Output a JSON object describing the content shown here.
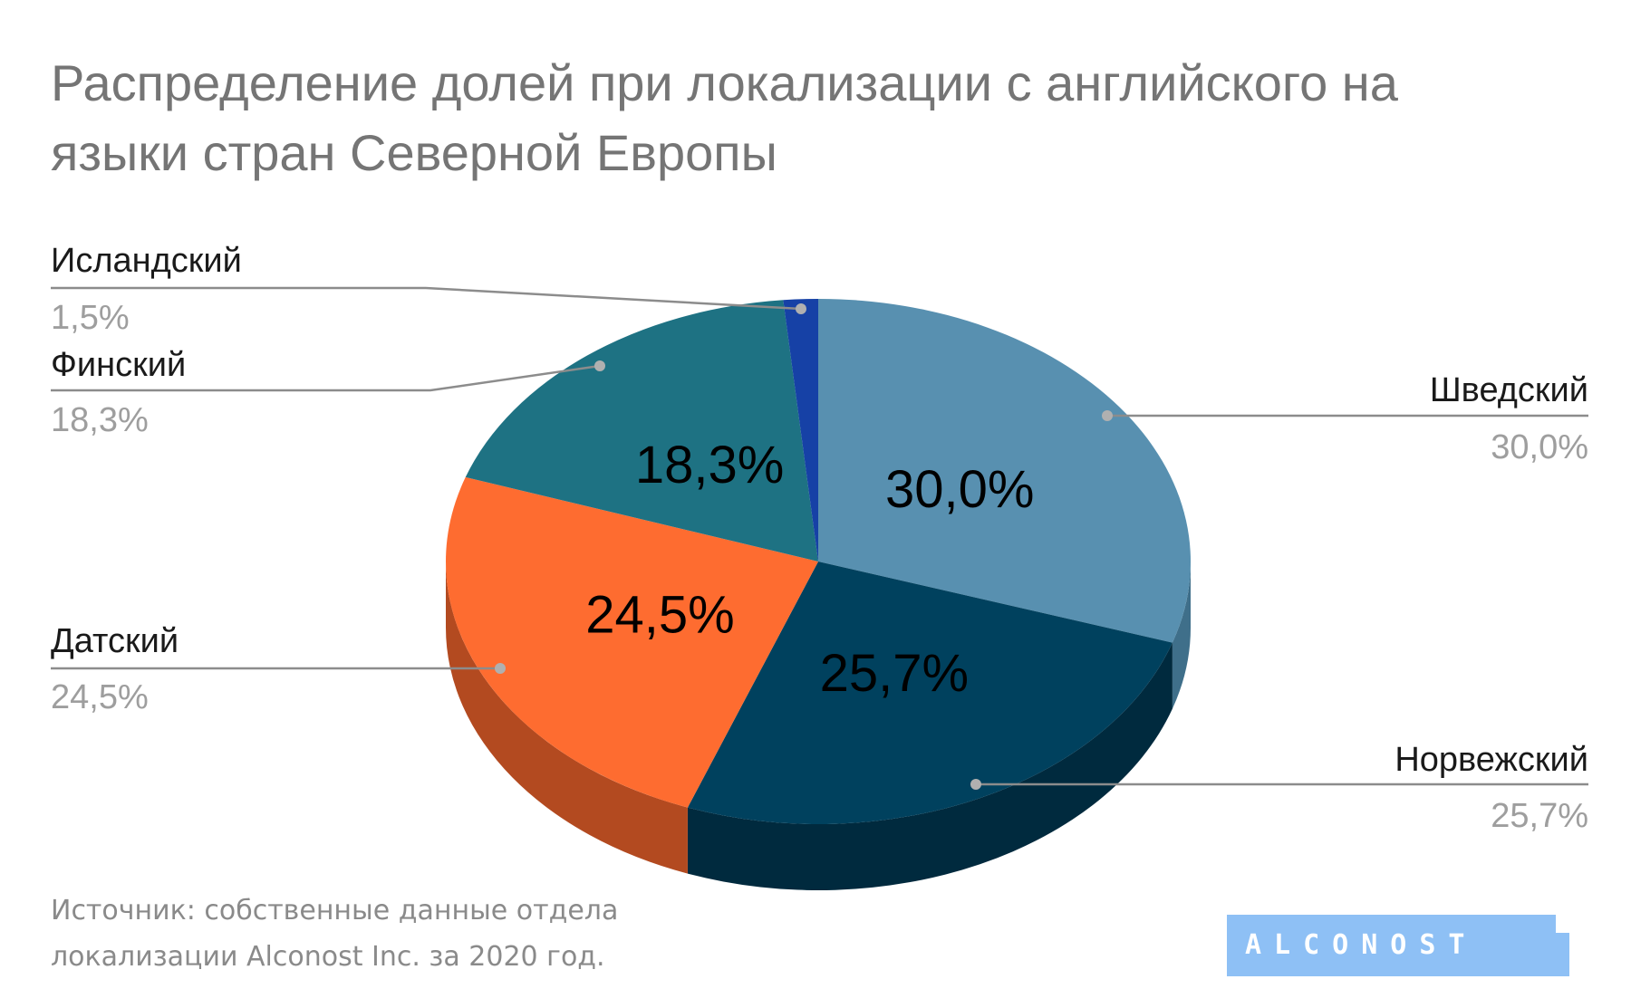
{
  "chart_data": {
    "type": "pie",
    "title_lines": [
      "Распределение долей при локализации с английского на",
      "языки стран Северной Европы"
    ],
    "slices": [
      {
        "name": "Шведский",
        "value": 30.0,
        "label": "30,0%",
        "color": "#5890b0",
        "side": "#3f6f8a"
      },
      {
        "name": "Норвежский",
        "value": 25.7,
        "label": "25,7%",
        "color": "#00415e",
        "side": "#002a3e"
      },
      {
        "name": "Датский",
        "value": 24.5,
        "label": "24,5%",
        "color": "#fe6c30",
        "side": "#b34a20"
      },
      {
        "name": "Финский",
        "value": 18.3,
        "label": "18,3%",
        "color": "#1e7283",
        "side": "#14525e"
      },
      {
        "name": "Исландский",
        "value": 1.5,
        "label": "1,5%",
        "color": "#1641a6",
        "side": "#0e2c72"
      }
    ]
  },
  "source_lines": [
    "Источник: собственные данные отдела",
    "локализации Alconost Inc. за 2020 год."
  ],
  "logo": {
    "text": "ALCONOST",
    "color": "#8ec0f5"
  }
}
